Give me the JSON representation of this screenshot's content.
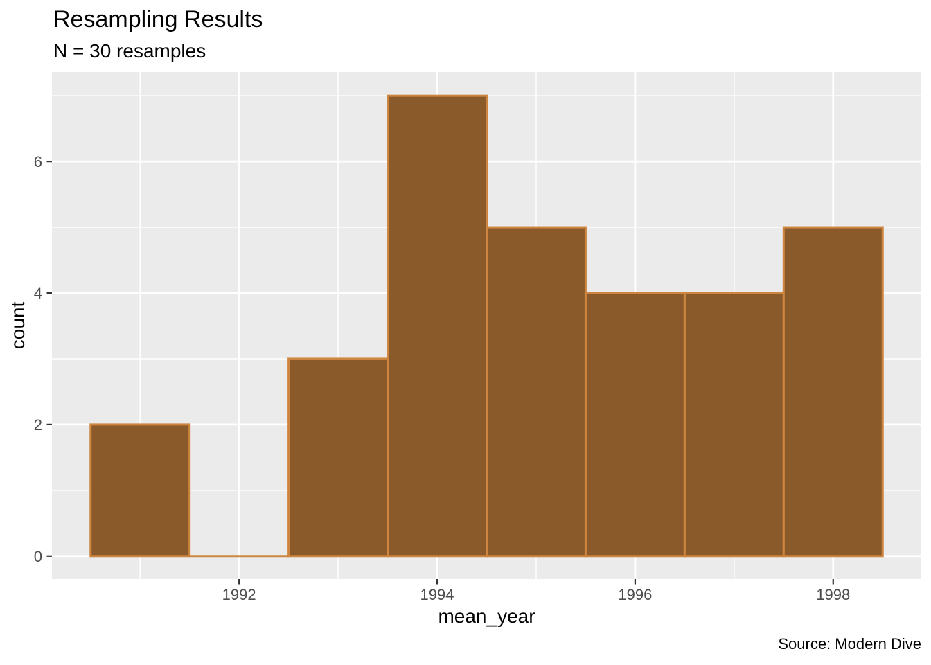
{
  "chart_data": {
    "type": "bar",
    "chart_kind": "histogram",
    "title": "Resampling Results",
    "subtitle": "N = 30 resamples",
    "caption": "Source: Modern Dive",
    "xlabel": "mean_year",
    "ylabel": "count",
    "n_resamples": 30,
    "bin_width": 1,
    "bin_centers": [
      1991,
      1992,
      1993,
      1994,
      1995,
      1996,
      1997,
      1998
    ],
    "values": [
      2,
      0,
      3,
      7,
      5,
      4,
      4,
      5
    ],
    "x_ticks": [
      1992,
      1994,
      1996,
      1998
    ],
    "x_tick_labels": [
      "1992",
      "1994",
      "1996",
      "1998"
    ],
    "y_ticks": [
      0,
      2,
      4,
      6
    ],
    "y_tick_labels": [
      "0",
      "2",
      "4",
      "6"
    ],
    "x_minor_gridlines": [
      1991,
      1993,
      1995,
      1997
    ],
    "y_minor_gridlines": [
      1,
      3,
      5,
      7
    ],
    "xlim": [
      1990.11,
      1998.89
    ],
    "ylim": [
      -0.35,
      7.36
    ],
    "grid": "on",
    "legend_position": "none",
    "colors": {
      "bar_fill": "#8B5A2B",
      "bar_stroke": "#CD853F",
      "panel_background": "#EBEBEB",
      "gridline": "#FFFFFF",
      "tick_mark": "#333333",
      "tick_label": "#4D4D4D",
      "text": "#000000",
      "page_background": "#FFFFFF"
    }
  }
}
